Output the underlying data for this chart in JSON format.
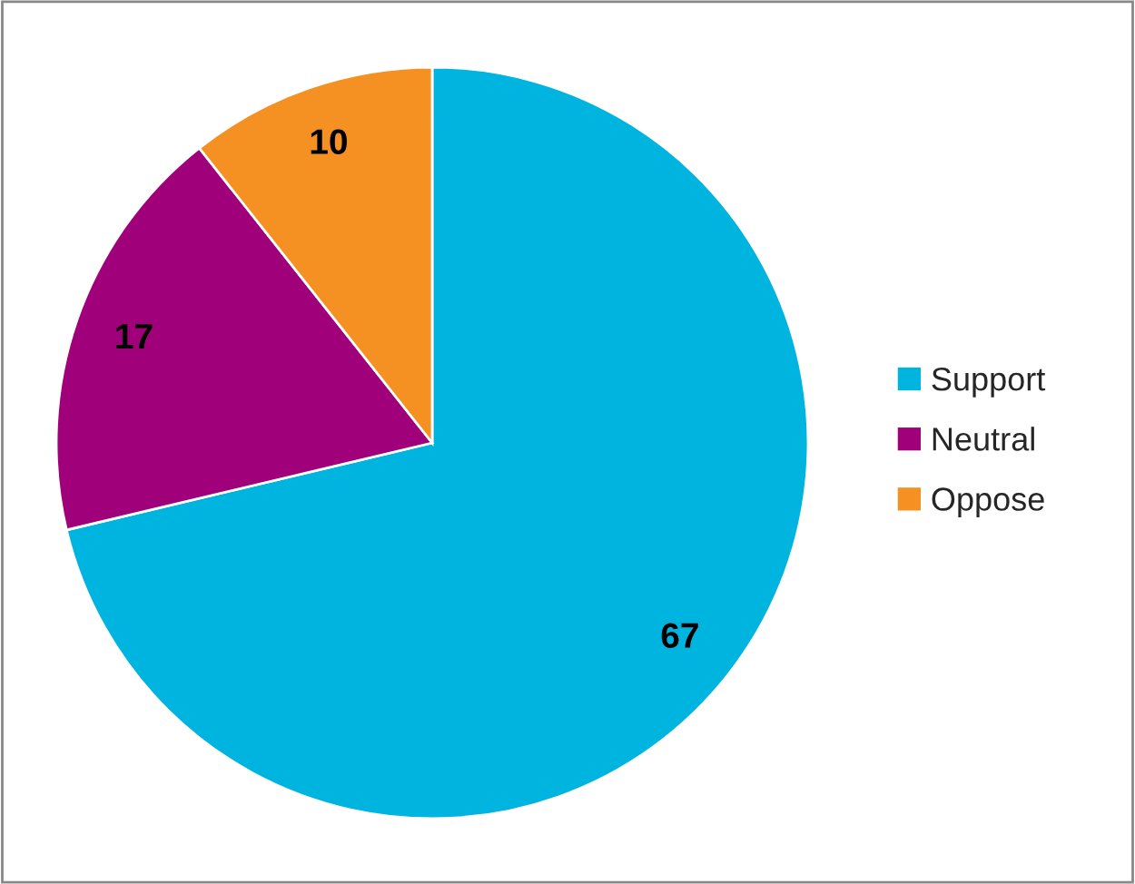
{
  "chart_data": {
    "type": "pie",
    "categories": [
      "Support",
      "Neutral",
      "Oppose"
    ],
    "values": [
      67,
      17,
      10
    ],
    "colors": [
      "#00b4e0",
      "#a0007a",
      "#f59023"
    ],
    "data_labels": true,
    "legend": "right"
  }
}
